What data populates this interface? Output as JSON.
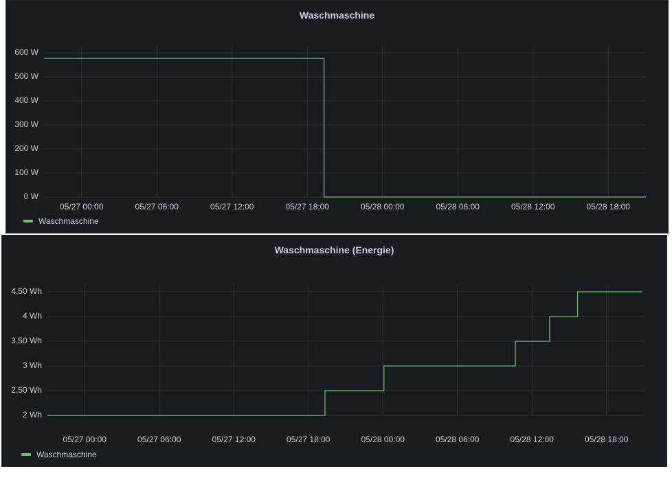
{
  "colors": {
    "series": "#73bf69",
    "grid": "#2c3036"
  },
  "chart_data": [
    {
      "type": "line",
      "title": "Waschmaschine",
      "unit": "W",
      "x_axis_type": "time",
      "x_ticks": [
        "05/27 00:00",
        "05/27 06:00",
        "05/27 12:00",
        "05/27 18:00",
        "05/28 00:00",
        "05/28 06:00",
        "05/28 12:00",
        "05/28 18:00"
      ],
      "y_ticks": [
        "0 W",
        "100 W",
        "200 W",
        "300 W",
        "400 W",
        "500 W",
        "600 W"
      ],
      "ylim": [
        0,
        600
      ],
      "xlim": [
        "05/26 21:00",
        "05/28 21:00"
      ],
      "grid": true,
      "legend": "bottom-left",
      "series": [
        {
          "name": "Waschmaschine",
          "points": [
            [
              "05/26 21:00",
              577
            ],
            [
              "05/27 19:20",
              577
            ],
            [
              "05/27 19:20",
              0
            ],
            [
              "05/28 21:00",
              0
            ]
          ]
        }
      ]
    },
    {
      "type": "line",
      "title": "Waschmaschine (Energie)",
      "unit": "Wh",
      "x_axis_type": "time",
      "x_ticks": [
        "05/27 00:00",
        "05/27 06:00",
        "05/27 12:00",
        "05/27 18:00",
        "05/28 00:00",
        "05/28 06:00",
        "05/28 12:00",
        "05/28 18:00"
      ],
      "y_ticks": [
        "2 Wh",
        "2.50 Wh",
        "3 Wh",
        "3.50 Wh",
        "4 Wh",
        "4.50 Wh"
      ],
      "ylim": [
        2,
        4.5
      ],
      "xlim": [
        "05/26 21:00",
        "05/28 21:00"
      ],
      "grid": true,
      "legend": "bottom-left",
      "series": [
        {
          "name": "Waschmaschine",
          "points": [
            [
              "05/26 21:00",
              2
            ],
            [
              "05/27 19:20",
              2
            ],
            [
              "05/27 19:20",
              2.5
            ],
            [
              "05/28 00:05",
              2.5
            ],
            [
              "05/28 00:05",
              3
            ],
            [
              "05/28 10:40",
              3
            ],
            [
              "05/28 10:40",
              3.5
            ],
            [
              "05/28 13:25",
              3.5
            ],
            [
              "05/28 13:25",
              4
            ],
            [
              "05/28 15:40",
              4
            ],
            [
              "05/28 15:40",
              4.5
            ],
            [
              "05/28 20:50",
              4.5
            ]
          ]
        }
      ]
    }
  ]
}
